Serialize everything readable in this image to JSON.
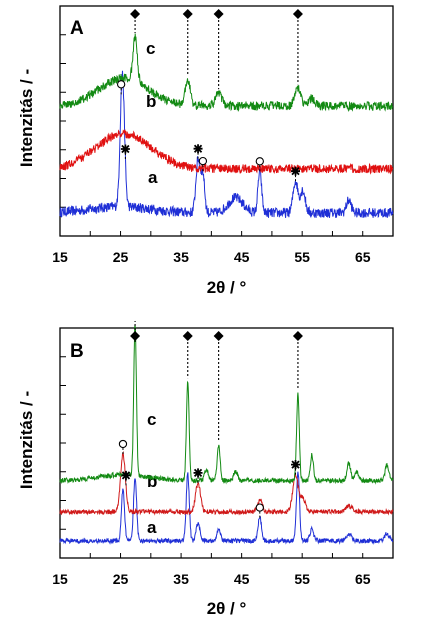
{
  "chart_data": [
    {
      "type": "line",
      "panel": "A",
      "xlabel": "2θ / °",
      "ylabel": "Intenzitás / -",
      "xlim": [
        15,
        70
      ],
      "xticks": [
        15,
        25,
        35,
        45,
        55,
        65
      ],
      "grid": false,
      "legend": "none",
      "series": [
        {
          "curve_label": "a",
          "color": "#1f2fd6",
          "offset": 0.0,
          "peaks": [
            [
              25.3,
              1.05,
              0.35
            ],
            [
              37.8,
              0.42,
              0.35
            ],
            [
              38.6,
              0.3,
              0.3
            ],
            [
              48.0,
              0.33,
              0.3
            ],
            [
              53.9,
              0.25,
              0.4
            ],
            [
              55.1,
              0.18,
              0.4
            ],
            [
              62.7,
              0.1,
              0.4
            ],
            [
              44.0,
              0.12,
              1.2
            ]
          ],
          "baseline": 0.12,
          "noise": 0.04,
          "broad": [
            [
              25,
              0.05,
              5
            ]
          ]
        },
        {
          "curve_label": "b",
          "color": "#e01010",
          "offset": 0.45,
          "peaks": [],
          "baseline": 0.02,
          "noise": 0.035,
          "broad": [
            [
              25.5,
              0.28,
              4.5
            ]
          ]
        },
        {
          "curve_label": "c",
          "color": "#138a13",
          "offset": 0.95,
          "peaks": [
            [
              27.4,
              0.35,
              0.35
            ],
            [
              36.1,
              0.2,
              0.4
            ],
            [
              41.2,
              0.1,
              0.5
            ],
            [
              54.3,
              0.14,
              0.5
            ],
            [
              56.6,
              0.06,
              0.5
            ]
          ],
          "baseline": 0.02,
          "noise": 0.035,
          "broad": [
            [
              25.5,
              0.22,
              4
            ]
          ]
        }
      ],
      "markers": [
        {
          "symbol": "diamond",
          "x": 27.4,
          "series": "c"
        },
        {
          "symbol": "diamond",
          "x": 36.1,
          "series": "c"
        },
        {
          "symbol": "diamond",
          "x": 41.2,
          "series": "c"
        },
        {
          "symbol": "diamond",
          "x": 54.3,
          "series": "c"
        },
        {
          "symbol": "star",
          "x": 25.8,
          "series": "a"
        },
        {
          "symbol": "circle",
          "x": 25.1,
          "series": "a"
        },
        {
          "symbol": "star",
          "x": 37.8,
          "series": "a"
        },
        {
          "symbol": "circle",
          "x": 38.6,
          "series": "a"
        },
        {
          "symbol": "circle",
          "x": 48.0,
          "series": "a"
        },
        {
          "symbol": "star",
          "x": 53.9,
          "series": "a"
        }
      ]
    },
    {
      "type": "line",
      "panel": "B",
      "xlabel": "2θ / °",
      "ylabel": "Intenzitás / -",
      "xlim": [
        15,
        70
      ],
      "xticks": [
        15,
        25,
        35,
        45,
        55,
        65
      ],
      "grid": false,
      "legend": "none",
      "series": [
        {
          "curve_label": "a",
          "color": "#1f2fd6",
          "offset": 0.0,
          "peaks": [
            [
              25.4,
              0.45,
              0.25
            ],
            [
              27.4,
              0.55,
              0.25
            ],
            [
              36.1,
              0.58,
              0.25
            ],
            [
              37.8,
              0.15,
              0.3
            ],
            [
              41.2,
              0.1,
              0.3
            ],
            [
              48.0,
              0.2,
              0.3
            ],
            [
              54.3,
              0.6,
              0.25
            ],
            [
              56.6,
              0.1,
              0.3
            ],
            [
              62.7,
              0.06,
              0.4
            ],
            [
              69.0,
              0.06,
              0.4
            ]
          ],
          "baseline": 0.08,
          "noise": 0.02,
          "broad": []
        },
        {
          "curve_label": "b",
          "color": "#d01a1a",
          "offset": 0.28,
          "peaks": [
            [
              25.4,
              0.5,
              0.4
            ],
            [
              37.8,
              0.25,
              0.4
            ],
            [
              48.0,
              0.1,
              0.4
            ],
            [
              53.9,
              0.32,
              0.45
            ],
            [
              55.1,
              0.12,
              0.4
            ],
            [
              62.7,
              0.05,
              0.5
            ]
          ],
          "baseline": 0.05,
          "noise": 0.02,
          "broad": []
        },
        {
          "curve_label": "c",
          "color": "#138a13",
          "offset": 0.58,
          "peaks": [
            [
              27.4,
              1.3,
              0.22
            ],
            [
              36.1,
              0.85,
              0.22
            ],
            [
              39.2,
              0.1,
              0.3
            ],
            [
              41.2,
              0.3,
              0.25
            ],
            [
              44.0,
              0.08,
              0.3
            ],
            [
              54.3,
              0.75,
              0.22
            ],
            [
              56.6,
              0.22,
              0.25
            ],
            [
              62.7,
              0.15,
              0.3
            ],
            [
              64.0,
              0.08,
              0.3
            ],
            [
              69.0,
              0.14,
              0.3
            ]
          ],
          "baseline": 0.02,
          "noise": 0.02,
          "broad": [
            [
              25.5,
              0.05,
              4
            ]
          ]
        }
      ],
      "markers": [
        {
          "symbol": "diamond",
          "x": 27.4,
          "series": "c"
        },
        {
          "symbol": "diamond",
          "x": 36.1,
          "series": "c"
        },
        {
          "symbol": "diamond",
          "x": 41.2,
          "series": "c"
        },
        {
          "symbol": "diamond",
          "x": 54.3,
          "series": "c"
        },
        {
          "symbol": "star",
          "x": 25.9,
          "series": "b"
        },
        {
          "symbol": "circle",
          "x": 25.4,
          "series": "b"
        },
        {
          "symbol": "star",
          "x": 37.8,
          "series": "b"
        },
        {
          "symbol": "star",
          "x": 53.9,
          "series": "b"
        },
        {
          "symbol": "circle",
          "x": 48.0,
          "series": "a"
        }
      ]
    }
  ]
}
